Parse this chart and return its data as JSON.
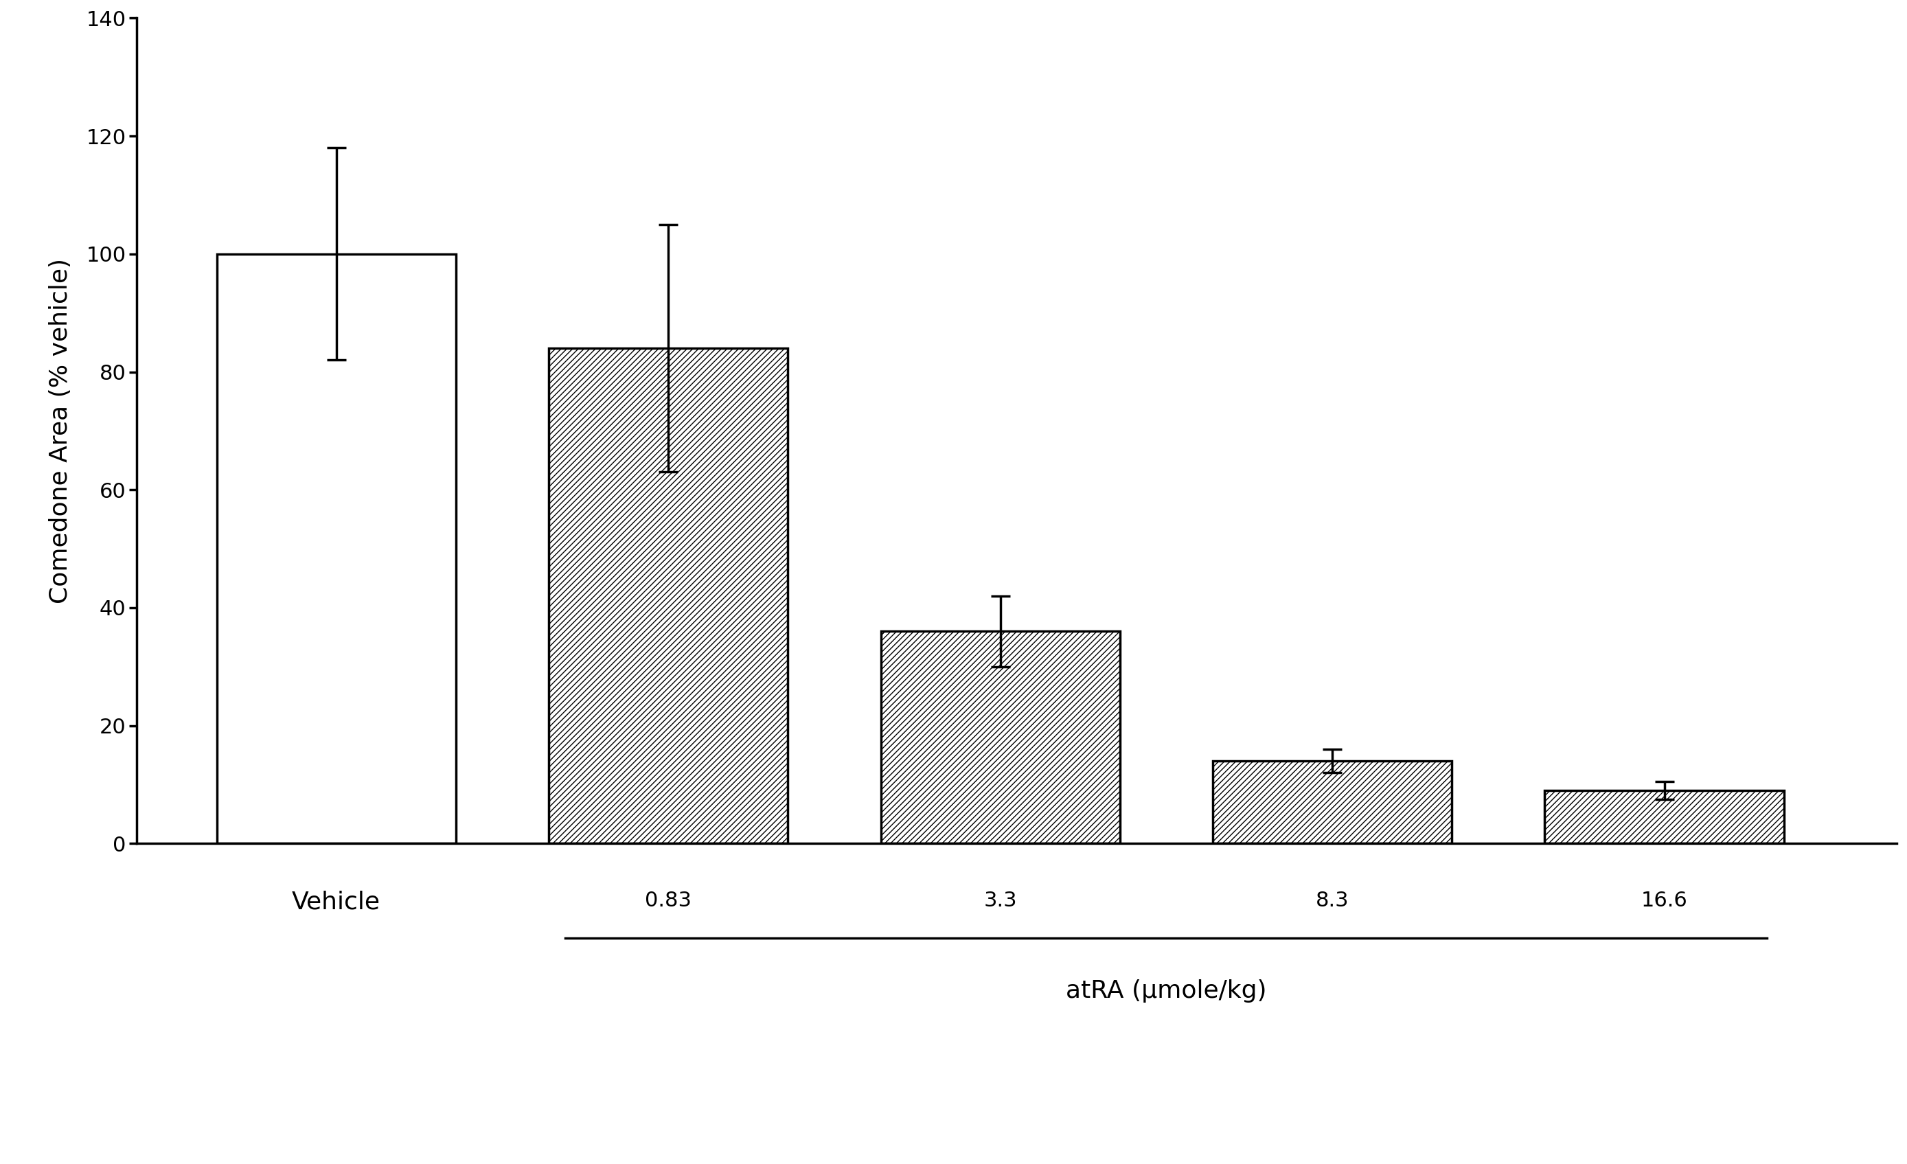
{
  "categories": [
    "Vehicle",
    "0.83",
    "3.3",
    "8.3",
    "16.6"
  ],
  "values": [
    100,
    84,
    36,
    14,
    9
  ],
  "errors": [
    18,
    21,
    6,
    2,
    1.5
  ],
  "ylabel": "Comedone Area (% vehicle)",
  "xlabel_vehicle": "Vehicle",
  "xlabel_group": "atRA (μmole/kg)",
  "xlabel_doses": [
    "0.83",
    "3.3",
    "8.3",
    "16.6"
  ],
  "ylim": [
    0,
    140
  ],
  "yticks": [
    0,
    20,
    40,
    60,
    80,
    100,
    120,
    140
  ],
  "bar_positions": [
    1,
    2,
    3,
    4,
    5
  ],
  "background_color": "#ffffff",
  "bar_color_vehicle": "#ffffff",
  "hatch_pattern": "////",
  "edge_color": "#000000",
  "font_size_ticks": 22,
  "font_size_ylabel": 26,
  "font_size_xlabel": 26,
  "bar_width": 0.72
}
